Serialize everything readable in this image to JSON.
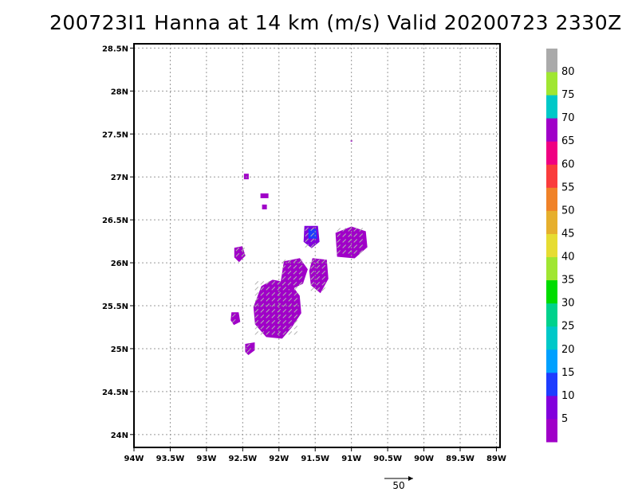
{
  "title": "200723I1 Hanna at 14 km (m/s) Valid 20200723 2330Z",
  "vector_scale_label": "50",
  "map": {
    "lon_ticks": [
      "94W",
      "93.5W",
      "93W",
      "92.5W",
      "92W",
      "91.5W",
      "91W",
      "90.5W",
      "90W",
      "89.5W",
      "89W"
    ],
    "lat_ticks": [
      "24N",
      "24.5N",
      "25N",
      "25.5N",
      "26N",
      "26.5N",
      "27N",
      "27.5N",
      "28N",
      "28.5N"
    ],
    "lon_range": [
      -94.0,
      -88.95
    ],
    "lat_range": [
      23.85,
      28.55
    ],
    "grid": true
  },
  "colorbar": {
    "labels": [
      "5",
      "10",
      "15",
      "20",
      "25",
      "30",
      "35",
      "40",
      "45",
      "50",
      "55",
      "60",
      "65",
      "70",
      "75",
      "80"
    ],
    "colors": [
      "#a000c8",
      "#8200dc",
      "#1e3cff",
      "#00a0ff",
      "#00c8c8",
      "#00d28c",
      "#00dc00",
      "#a0e632",
      "#e6dc32",
      "#e6af2d",
      "#f08228",
      "#fa3c3c",
      "#f00082",
      "#a000c8",
      "#00c8c8",
      "#a0e632",
      "#aaaaaa"
    ]
  },
  "chart_data": {
    "type": "heatmap",
    "title": "200723I1 Hanna at 14 km (m/s) Valid 20200723 2330Z",
    "xlabel": "",
    "ylabel": "",
    "x_range": [
      -94.0,
      -88.95
    ],
    "y_range": [
      23.85,
      28.55
    ],
    "units": "m/s",
    "value_range_shown": [
      0,
      10
    ],
    "echo_regions": [
      {
        "lon": -92.0,
        "lat": 25.45,
        "value": 5
      },
      {
        "lon": -91.8,
        "lat": 25.85,
        "value": 5
      },
      {
        "lon": -91.45,
        "lat": 25.85,
        "value": 5
      },
      {
        "lon": -91.0,
        "lat": 26.2,
        "value": 5
      },
      {
        "lon": -91.55,
        "lat": 26.3,
        "value": 10
      },
      {
        "lon": -92.55,
        "lat": 26.1,
        "value": 5
      },
      {
        "lon": -92.6,
        "lat": 25.35,
        "value": 5
      },
      {
        "lon": -92.4,
        "lat": 25.0,
        "value": 5
      },
      {
        "lon": -92.45,
        "lat": 27.0,
        "value": 5
      },
      {
        "lon": -92.2,
        "lat": 26.78,
        "value": 5
      },
      {
        "lon": -92.2,
        "lat": 26.65,
        "value": 5
      },
      {
        "lon": -91.0,
        "lat": 27.42,
        "value": 5
      }
    ]
  }
}
